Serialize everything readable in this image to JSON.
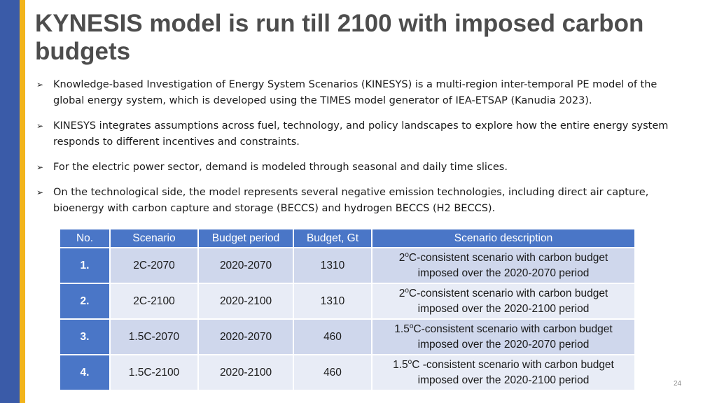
{
  "slide": {
    "title": "KYNESIS model is run till 2100 with imposed carbon budgets",
    "page_number": "24",
    "accent_colors": {
      "left_bar": "#3a5ba8",
      "left_stripe": "#f2b41b",
      "table_header": "#4a76c7"
    }
  },
  "bullets": [
    {
      "icon": "arrow-bullet-icon",
      "text": "Knowledge-based Investigation of Energy System Scenarios (KINESYS) is a multi-region inter-temporal PE model of the global energy system, which is developed using the TIMES model generator of IEA-ETSAP (Kanudia 2023)."
    },
    {
      "icon": "arrow-bullet-icon",
      "text": "KINESYS integrates assumptions across fuel, technology, and policy landscapes to explore how the entire energy system responds to different incentives and constraints."
    },
    {
      "icon": "arrow-bullet-icon",
      "text": "For the electric power sector, demand is modeled through seasonal and daily time slices."
    },
    {
      "icon": "arrow-bullet-icon",
      "text": "On the technological side, the model represents several negative emission technologies, including direct air capture, bioenergy with carbon capture and storage (BECCS) and hydrogen BECCS (H2 BECCS)."
    }
  ],
  "table": {
    "headers": [
      "No.",
      "Scenario",
      "Budget period",
      "Budget, Gt",
      "Scenario description"
    ],
    "rows": [
      {
        "no": "1.",
        "scenario": "2C-2070",
        "period": "2020-2070",
        "budget": "1310",
        "desc": {
          "pre": "2",
          "sup": "o",
          "line1": "C-consistent scenario with carbon budget",
          "line2": "imposed over the 2020-2070 period"
        }
      },
      {
        "no": "2.",
        "scenario": "2C-2100",
        "period": "2020-2100",
        "budget": "1310",
        "desc": {
          "pre": "2",
          "sup": "o",
          "line1": "C-consistent scenario with carbon budget",
          "line2": "imposed over the 2020-2100 period"
        }
      },
      {
        "no": "3.",
        "scenario": "1.5C-2070",
        "period": "2020-2070",
        "budget": "460",
        "desc": {
          "pre": "1.5",
          "sup": "o",
          "line1": "C-consistent scenario with carbon budget",
          "line2": "imposed over the 2020-2070 period"
        }
      },
      {
        "no": "4.",
        "scenario": "1.5C-2100",
        "period": "2020-2100",
        "budget": "460",
        "desc": {
          "pre": "1.5",
          "sup": "o",
          "line1": "C -consistent scenario with carbon budget",
          "line2": "imposed over the 2020-2100 period"
        }
      }
    ]
  }
}
